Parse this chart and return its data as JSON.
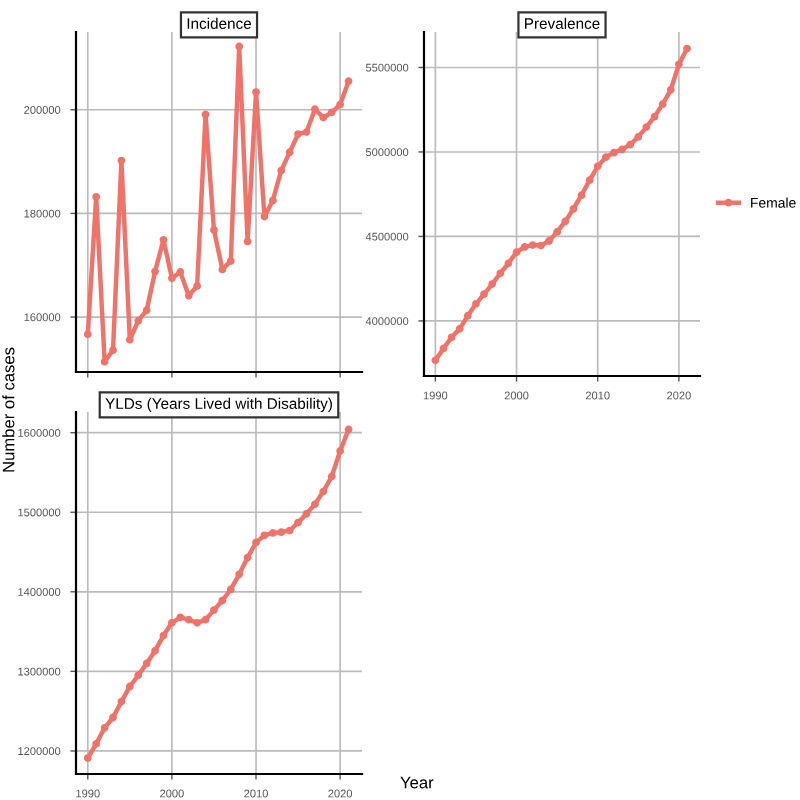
{
  "chart_data": [
    {
      "type": "line",
      "title": "Incidence",
      "ylabel": "Number of cases",
      "x": [
        1990,
        1991,
        1992,
        1993,
        1994,
        1995,
        1996,
        1997,
        1998,
        1999,
        2000,
        2001,
        2002,
        2003,
        2004,
        2005,
        2006,
        2007,
        2008,
        2009,
        2010,
        2011,
        2012,
        2013,
        2014,
        2015,
        2016,
        2017,
        2018,
        2019,
        2020,
        2021
      ],
      "series": [
        {
          "color": "#f0736a",
          "values": [
            156700,
            183200,
            151400,
            153600,
            190200,
            155600,
            159300,
            161300,
            168800,
            174900,
            167500,
            168700,
            164100,
            166000,
            199100,
            176800,
            169200,
            170800,
            212200,
            174600,
            203400,
            179400,
            182500,
            188300,
            191800,
            195300,
            195700,
            200100,
            198500,
            199500,
            201000,
            205500
          ]
        }
      ],
      "xlim": [
        1988.6,
        2022.6
      ],
      "xticks": [
        1990,
        2000,
        2010,
        2020
      ],
      "ylim": [
        149400,
        215000
      ],
      "yticks": [
        160000,
        180000,
        200000
      ],
      "tick_labels": "y",
      "grid": true,
      "marker": "circle",
      "line_style": "solid"
    },
    {
      "type": "line",
      "title": "Prevalence",
      "x": [
        1990,
        1991,
        1992,
        1993,
        1994,
        1995,
        1996,
        1997,
        1998,
        1999,
        2000,
        2001,
        2002,
        2003,
        2004,
        2005,
        2006,
        2007,
        2008,
        2009,
        2010,
        2011,
        2012,
        2013,
        2014,
        2015,
        2016,
        2017,
        2018,
        2019,
        2020,
        2021
      ],
      "series": [
        {
          "name": "Female",
          "color": "#f0736a",
          "values": [
            3767000,
            3837000,
            3903000,
            3953000,
            4031000,
            4101000,
            4159000,
            4218000,
            4282000,
            4341000,
            4407000,
            4438000,
            4449000,
            4446000,
            4473000,
            4527000,
            4589000,
            4663000,
            4744000,
            4833000,
            4915000,
            4969000,
            4996000,
            5015000,
            5043000,
            5089000,
            5147000,
            5209000,
            5283000,
            5368000,
            5519000,
            5612000
          ]
        }
      ],
      "xlim": [
        1988.6,
        2022.6
      ],
      "xticks": [
        1990,
        2000,
        2010,
        2020
      ],
      "ylim": [
        3674000,
        5710000
      ],
      "yticks": [
        4000000,
        4500000,
        5000000,
        5500000
      ],
      "grid": true,
      "legend": "right",
      "marker": "circle",
      "line_style": "solid"
    },
    {
      "type": "line",
      "title": "YLDs (Years Lived with Disability)",
      "xlabel": "Year",
      "x": [
        1990,
        1991,
        1992,
        1993,
        1994,
        1995,
        1996,
        1997,
        1998,
        1999,
        2000,
        2001,
        2002,
        2003,
        2004,
        2005,
        2006,
        2007,
        2008,
        2009,
        2010,
        2011,
        2012,
        2013,
        2014,
        2015,
        2016,
        2017,
        2018,
        2019,
        2020,
        2021
      ],
      "series": [
        {
          "color": "#f0736a",
          "values": [
            1191000,
            1209000,
            1229000,
            1242000,
            1262000,
            1281000,
            1295000,
            1310000,
            1326000,
            1345000,
            1361000,
            1368000,
            1365000,
            1361000,
            1365000,
            1377000,
            1389000,
            1403000,
            1422000,
            1443000,
            1462000,
            1471000,
            1474000,
            1475000,
            1477000,
            1487000,
            1498000,
            1510000,
            1526000,
            1545000,
            1577000,
            1604000
          ]
        }
      ],
      "xlim": [
        1988.6,
        2022.6
      ],
      "xticks": [
        1990,
        2000,
        2010,
        2020
      ],
      "ylim": [
        1171000,
        1626000
      ],
      "yticks": [
        1200000,
        1300000,
        1400000,
        1500000,
        1600000
      ],
      "grid": true,
      "marker": "circle",
      "line_style": "solid"
    }
  ]
}
